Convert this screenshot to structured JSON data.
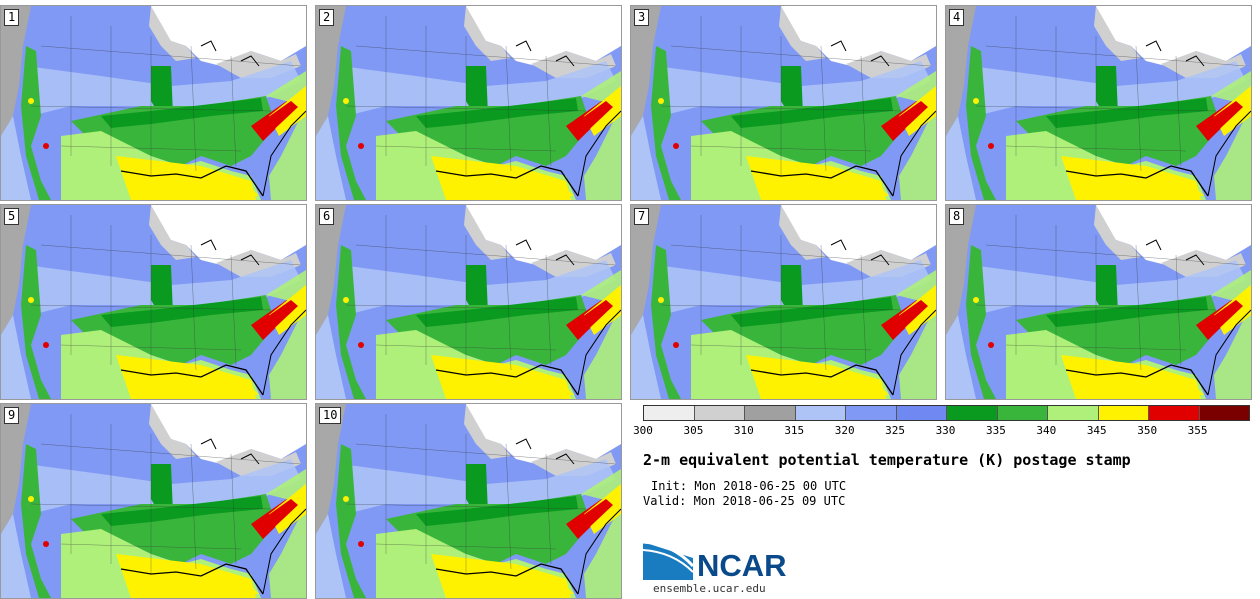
{
  "panels": [
    {
      "label": "1"
    },
    {
      "label": "2"
    },
    {
      "label": "3"
    },
    {
      "label": "4"
    },
    {
      "label": "5"
    },
    {
      "label": "6"
    },
    {
      "label": "7"
    },
    {
      "label": "8"
    },
    {
      "label": "9"
    },
    {
      "label": "10"
    }
  ],
  "colorbar": {
    "ticks": [
      "300",
      "305",
      "310",
      "315",
      "320",
      "325",
      "330",
      "335",
      "340",
      "345",
      "350",
      "355"
    ],
    "colors": [
      "#eeeeee",
      "#d0d0d0",
      "#a0a0a0",
      "#aec4f7",
      "#7f99f5",
      "#6f88f2",
      "#0a9a1f",
      "#3ab53c",
      "#aef07a",
      "#fff200",
      "#e00000",
      "#7a0000"
    ]
  },
  "title": "2-m equivalent potential temperature (K) postage stamp",
  "init": "Init: Mon 2018-06-25 00 UTC",
  "valid": "Valid: Mon 2018-06-25 09 UTC",
  "logo": {
    "text": "NCAR"
  },
  "url": "ensemble.ucar.edu"
}
